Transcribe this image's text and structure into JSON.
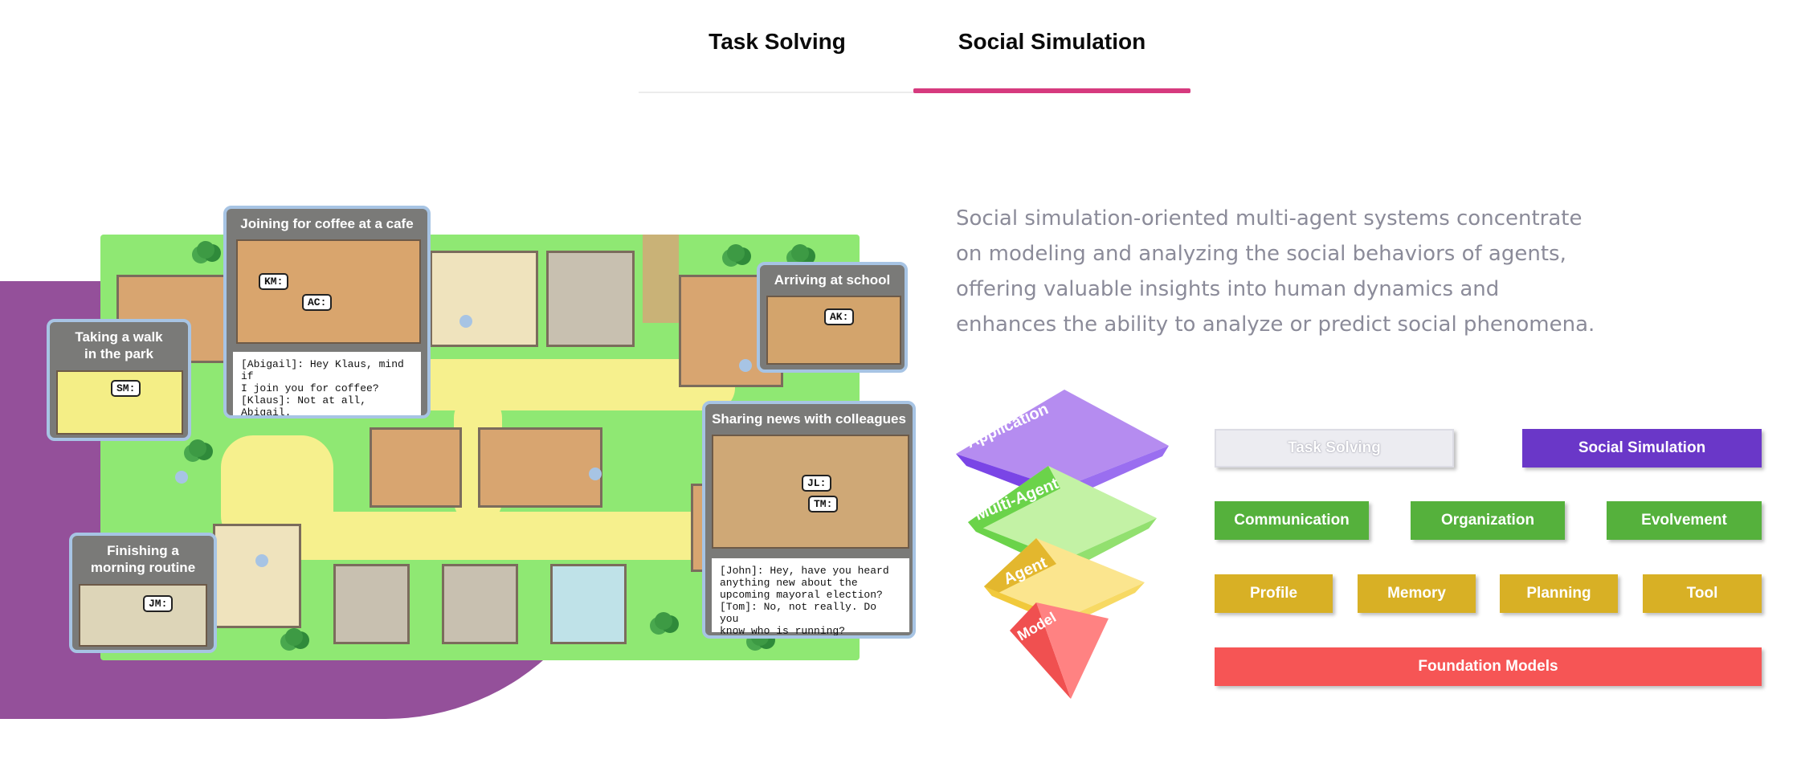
{
  "tabs": {
    "task_solving": "Task Solving",
    "social_simulation": "Social Simulation",
    "active": "Social Simulation"
  },
  "colors": {
    "tab_accent": "#d63a7e",
    "blob": "#94509a",
    "application": "#7a45e6",
    "multi_agent": "#6bd34a",
    "agent": "#f1c93b",
    "model": "#ff6a6a"
  },
  "callouts": {
    "coffee": {
      "title": "Joining for coffee at a cafe",
      "bubbles": [
        "KM:",
        "AC:"
      ],
      "dialog": "[Abigail]: Hey Klaus, mind if\nI join you for coffee?\n[Klaus]: Not at all, Abigail.\nHow are you?"
    },
    "school": {
      "title": "Arriving at school",
      "bubbles": [
        "AK:"
      ]
    },
    "park": {
      "title": "Taking a walk\nin the park",
      "bubbles": [
        "SM:"
      ]
    },
    "news": {
      "title": "Sharing news with colleagues",
      "bubbles": [
        "JL:",
        "TM:"
      ],
      "dialog": "[John]: Hey, have you heard\nanything new about the\nupcoming mayoral election?\n[Tom]: No, not really. Do you\nknow who is running?"
    },
    "morning": {
      "title": "Finishing a\nmorning routine",
      "bubbles": [
        "JM:"
      ]
    }
  },
  "description": "Social simulation-oriented multi-agent systems concentrate on modeling and analyzing the social behaviors of agents, offering valuable insights into human dynamics and enhances the ability to analyze or predict social phenomena.",
  "pyramid": {
    "levels": [
      "Application",
      "Multi-Agent",
      "Agent",
      "Model"
    ]
  },
  "framework": {
    "application_row": [
      "Task Solving",
      "Social Simulation"
    ],
    "multi_agent_row": [
      "Communication",
      "Organization",
      "Evolvement"
    ],
    "agent_row": [
      "Profile",
      "Memory",
      "Planning",
      "Tool"
    ],
    "model_row": [
      "Foundation Models"
    ]
  }
}
